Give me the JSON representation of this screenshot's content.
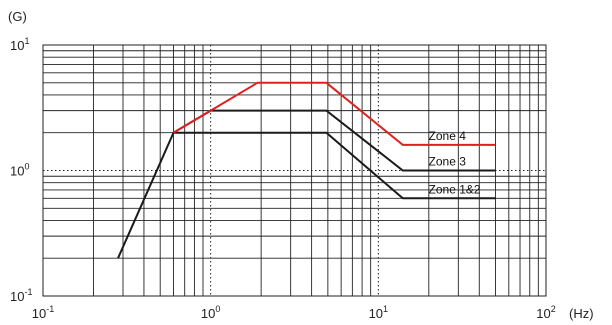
{
  "chart_data": {
    "type": "line",
    "x_scale": "log",
    "y_scale": "log",
    "xlim": [
      0.1,
      100
    ],
    "ylim": [
      0.1,
      10
    ],
    "y_unit": "(G)",
    "x_unit": "(Hz)",
    "x_ticks": [
      {
        "value": 0.1,
        "base": "10",
        "exp": "-1"
      },
      {
        "value": 1,
        "base": "10",
        "exp": "0"
      },
      {
        "value": 10,
        "base": "10",
        "exp": "1"
      },
      {
        "value": 100,
        "base": "10",
        "exp": "2"
      }
    ],
    "y_ticks": [
      {
        "value": 0.1,
        "base": "10",
        "exp": "-1"
      },
      {
        "value": 1,
        "base": "10",
        "exp": "0"
      },
      {
        "value": 10,
        "base": "10",
        "exp": "1"
      }
    ],
    "grid": true,
    "series": [
      {
        "name": "Zone 4",
        "color": "#e02020",
        "x": [
          0.6,
          1,
          1.9,
          4.9,
          14,
          50
        ],
        "y": [
          2,
          3,
          5,
          5,
          1.6,
          1.6
        ]
      },
      {
        "name": "Zone 3",
        "color": "#1a1a1a",
        "x": [
          0.6,
          1,
          4.9,
          14,
          50
        ],
        "y": [
          2,
          3,
          3,
          1,
          1
        ]
      },
      {
        "name": "Zone 1&2",
        "color": "#1a1a1a",
        "x": [
          0.28,
          0.6,
          4.9,
          14,
          50
        ],
        "y": [
          0.2,
          2,
          2,
          0.6,
          0.6
        ]
      }
    ]
  }
}
